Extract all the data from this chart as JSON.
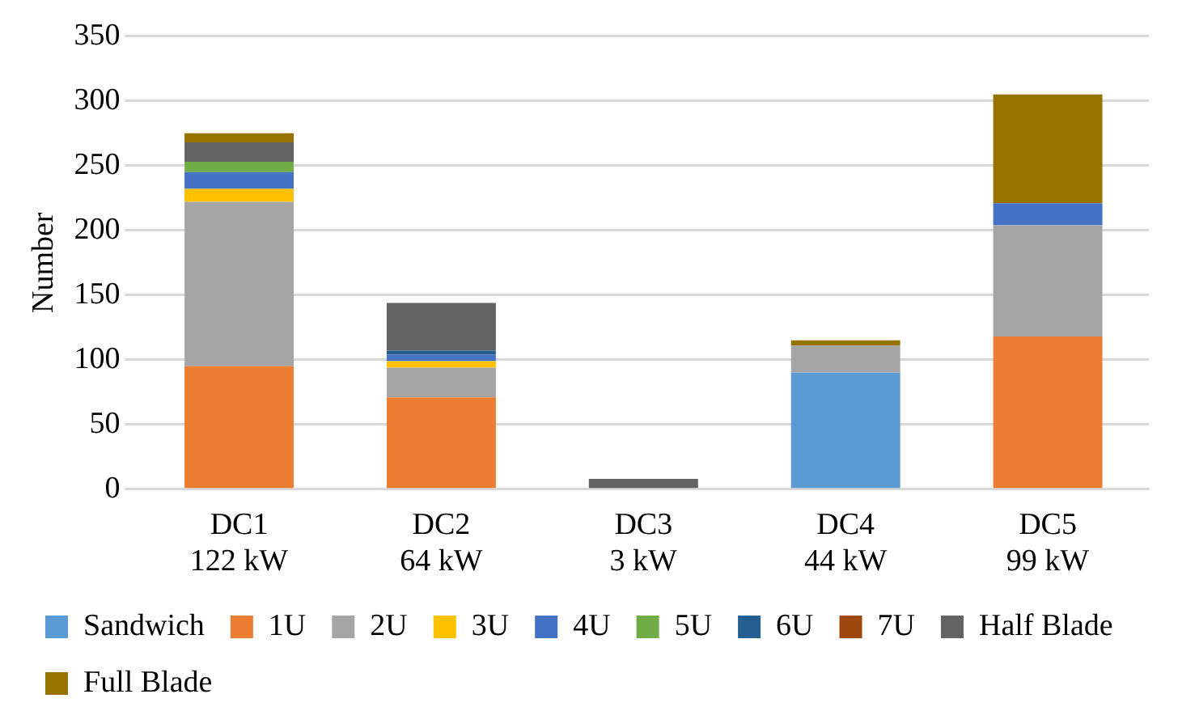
{
  "chart_data": {
    "type": "bar",
    "stacked": true,
    "ylabel": "Number",
    "categories": [
      "DC1\n122 kW",
      "DC2\n64 kW",
      "DC3\n3 kW",
      "DC4\n44 kW",
      "DC5\n99 kW"
    ],
    "series": [
      {
        "name": "Sandwich",
        "color": "#5b9bd5",
        "values": [
          0,
          0,
          0,
          90,
          0
        ]
      },
      {
        "name": "1U",
        "color": "#ed7d31",
        "values": [
          95,
          71,
          0,
          0,
          118
        ]
      },
      {
        "name": "2U",
        "color": "#a5a5a5",
        "values": [
          127,
          23,
          0,
          21,
          86
        ]
      },
      {
        "name": "3U",
        "color": "#ffc000",
        "values": [
          10,
          5,
          0,
          0,
          0
        ]
      },
      {
        "name": "4U",
        "color": "#4472c4",
        "values": [
          13,
          5,
          0,
          0,
          17
        ]
      },
      {
        "name": "5U",
        "color": "#70ad47",
        "values": [
          8,
          0,
          0,
          0,
          0
        ]
      },
      {
        "name": "6U",
        "color": "#255e91",
        "values": [
          0,
          3,
          0,
          0,
          0
        ]
      },
      {
        "name": "7U",
        "color": "#9e480e",
        "values": [
          0,
          0,
          1,
          0,
          0
        ]
      },
      {
        "name": "Half Blade",
        "color": "#636363",
        "values": [
          15,
          37,
          7,
          0,
          0
        ]
      },
      {
        "name": "Full Blade",
        "color": "#997300",
        "values": [
          7,
          0,
          0,
          4,
          84
        ]
      }
    ],
    "ylim": [
      0,
      350
    ],
    "yticks": [
      0,
      50,
      100,
      150,
      200,
      250,
      300,
      350
    ],
    "grid": "y",
    "legend": "bottom"
  }
}
